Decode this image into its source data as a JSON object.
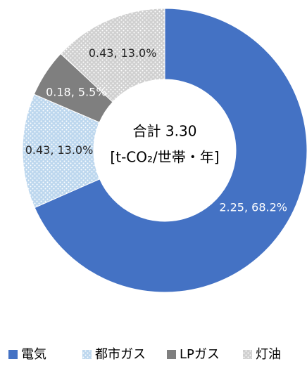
{
  "chart_data": {
    "type": "donut",
    "center_title": "合計 3.30",
    "center_unit": "[t-CO₂/世帯・年]",
    "categories": [
      "電気",
      "都市ガス",
      "LPガス",
      "灯油"
    ],
    "values": [
      2.25,
      0.43,
      0.18,
      0.43
    ],
    "value_labels": [
      "2.25, 68.2%",
      "0.43, 13.0%",
      "0.18, 5.5%",
      "0.43, 13.0%"
    ],
    "colors": [
      "#4472c4",
      "#bdd7ee",
      "#7f7f7f",
      "#d0d0d0"
    ],
    "patterns": [
      false,
      true,
      false,
      true
    ],
    "legend": "bottom"
  }
}
